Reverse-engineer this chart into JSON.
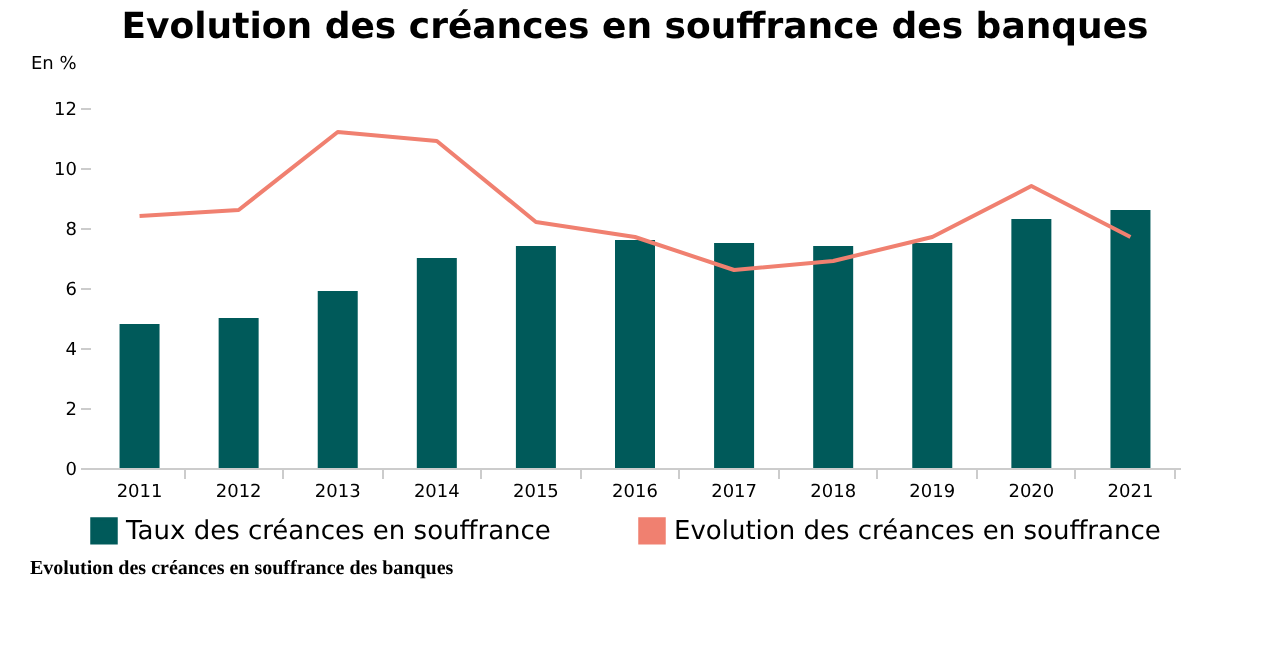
{
  "chart_data": {
    "type": "bar",
    "title": "Evolution des créances en souffrance des banques",
    "ylabel": "En %",
    "categories": [
      "2011",
      "2012",
      "2013",
      "2014",
      "2015",
      "2016",
      "2017",
      "2018",
      "2019",
      "2020",
      "2021"
    ],
    "series": [
      {
        "name": "Taux des créances en souffrance",
        "color": "#005a5a",
        "values": [
          4.8,
          5.0,
          5.9,
          7.0,
          7.4,
          7.6,
          7.5,
          7.4,
          7.5,
          8.3,
          8.6
        ]
      },
      {
        "name": "Evolution des créances en souffrance",
        "type": "line",
        "color": "#f08070",
        "values": [
          8.4,
          8.6,
          11.2,
          10.9,
          8.2,
          7.7,
          6.6,
          6.9,
          7.7,
          9.4,
          7.7
        ]
      }
    ],
    "ylim": [
      0,
      12
    ],
    "yticks": [
      0,
      2,
      4,
      6,
      8,
      10,
      12
    ],
    "grid": false,
    "legend": "bottom",
    "marker": "none",
    "annotations": [
      "Evolution des créances en souffrance des banques"
    ]
  }
}
